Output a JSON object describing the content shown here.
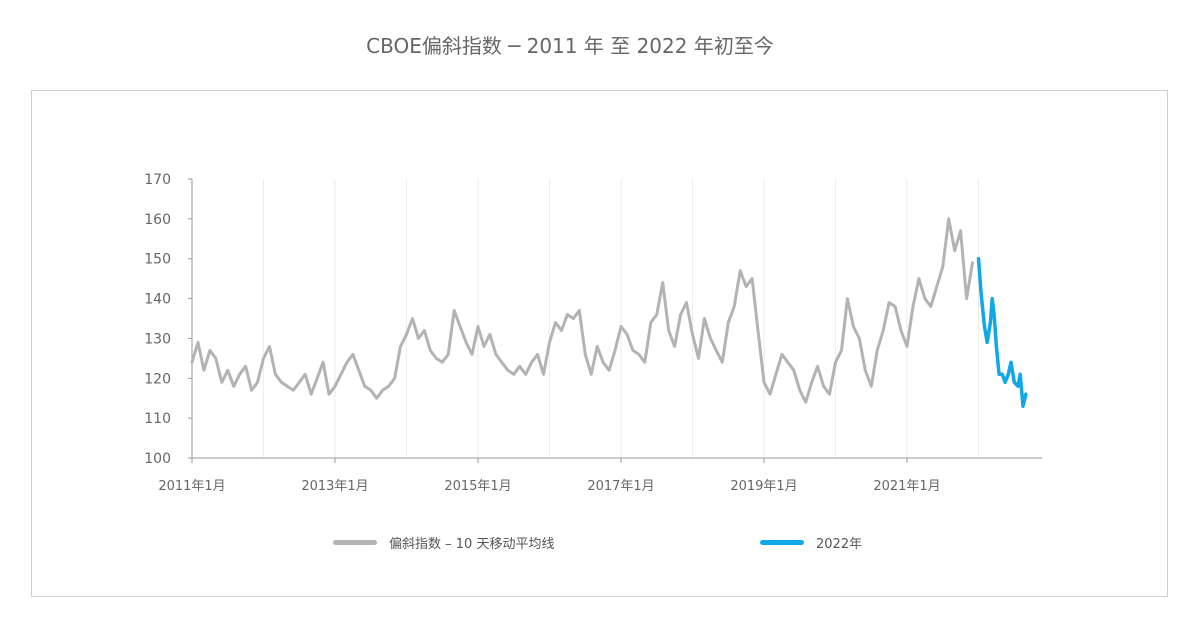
{
  "chart_data": {
    "type": "line",
    "title": "CBOE偏斜指数 ─ 2011 年 至  2022 年初至今",
    "xlabel": "",
    "ylabel": "",
    "ylim": [
      100,
      170
    ],
    "yticks": [
      "100",
      "110",
      "120",
      "130",
      "140",
      "150",
      "160",
      "170"
    ],
    "x_tick_labels": [
      "2011年1月",
      "2013年1月",
      "2015年1月",
      "2017年1月",
      "2019年1月",
      "2021年1月"
    ],
    "x_axis_note": "第五个标签印为“2019年1月”（原图如此），对应 2019 年位置",
    "grid": "vertical",
    "legend_position": "bottom",
    "colors": {
      "history": "#b3b3b3",
      "ytd": "#11a8e8",
      "grid": "#eeeeee",
      "axis": "#9a9a9a",
      "text": "#666666"
    },
    "series": [
      {
        "name": "偏斜指数 – 10 天移动平均线",
        "color": "#b3b3b3",
        "points": [
          [
            "2011-01",
            124
          ],
          [
            "2011-02",
            129
          ],
          [
            "2011-03",
            122
          ],
          [
            "2011-04",
            127
          ],
          [
            "2011-05",
            125
          ],
          [
            "2011-06",
            119
          ],
          [
            "2011-07",
            122
          ],
          [
            "2011-08",
            118
          ],
          [
            "2011-09",
            121
          ],
          [
            "2011-10",
            123
          ],
          [
            "2011-11",
            117
          ],
          [
            "2011-12",
            119
          ],
          [
            "2012-01",
            125
          ],
          [
            "2012-02",
            128
          ],
          [
            "2012-03",
            121
          ],
          [
            "2012-04",
            119
          ],
          [
            "2012-05",
            118
          ],
          [
            "2012-06",
            117
          ],
          [
            "2012-07",
            119
          ],
          [
            "2012-08",
            121
          ],
          [
            "2012-09",
            116
          ],
          [
            "2012-10",
            120
          ],
          [
            "2012-11",
            124
          ],
          [
            "2012-12",
            116
          ],
          [
            "2013-01",
            118
          ],
          [
            "2013-02",
            121
          ],
          [
            "2013-03",
            124
          ],
          [
            "2013-04",
            126
          ],
          [
            "2013-05",
            122
          ],
          [
            "2013-06",
            118
          ],
          [
            "2013-07",
            117
          ],
          [
            "2013-08",
            115
          ],
          [
            "2013-09",
            117
          ],
          [
            "2013-10",
            118
          ],
          [
            "2013-11",
            120
          ],
          [
            "2013-12",
            128
          ],
          [
            "2014-01",
            131
          ],
          [
            "2014-02",
            135
          ],
          [
            "2014-03",
            130
          ],
          [
            "2014-04",
            132
          ],
          [
            "2014-05",
            127
          ],
          [
            "2014-06",
            125
          ],
          [
            "2014-07",
            124
          ],
          [
            "2014-08",
            126
          ],
          [
            "2014-09",
            137
          ],
          [
            "2014-10",
            133
          ],
          [
            "2014-11",
            129
          ],
          [
            "2014-12",
            126
          ],
          [
            "2015-01",
            133
          ],
          [
            "2015-02",
            128
          ],
          [
            "2015-03",
            131
          ],
          [
            "2015-04",
            126
          ],
          [
            "2015-05",
            124
          ],
          [
            "2015-06",
            122
          ],
          [
            "2015-07",
            121
          ],
          [
            "2015-08",
            123
          ],
          [
            "2015-09",
            121
          ],
          [
            "2015-10",
            124
          ],
          [
            "2015-11",
            126
          ],
          [
            "2015-12",
            121
          ],
          [
            "2016-01",
            129
          ],
          [
            "2016-02",
            134
          ],
          [
            "2016-03",
            132
          ],
          [
            "2016-04",
            136
          ],
          [
            "2016-05",
            135
          ],
          [
            "2016-06",
            137
          ],
          [
            "2016-07",
            126
          ],
          [
            "2016-08",
            121
          ],
          [
            "2016-09",
            128
          ],
          [
            "2016-10",
            124
          ],
          [
            "2016-11",
            122
          ],
          [
            "2016-12",
            127
          ],
          [
            "2017-01",
            133
          ],
          [
            "2017-02",
            131
          ],
          [
            "2017-03",
            127
          ],
          [
            "2017-04",
            126
          ],
          [
            "2017-05",
            124
          ],
          [
            "2017-06",
            134
          ],
          [
            "2017-07",
            136
          ],
          [
            "2017-08",
            144
          ],
          [
            "2017-09",
            132
          ],
          [
            "2017-10",
            128
          ],
          [
            "2017-11",
            136
          ],
          [
            "2017-12",
            139
          ],
          [
            "2018-01",
            131
          ],
          [
            "2018-02",
            125
          ],
          [
            "2018-03",
            135
          ],
          [
            "2018-04",
            130
          ],
          [
            "2018-05",
            127
          ],
          [
            "2018-06",
            124
          ],
          [
            "2018-07",
            134
          ],
          [
            "2018-08",
            138
          ],
          [
            "2018-09",
            147
          ],
          [
            "2018-10",
            143
          ],
          [
            "2018-11",
            145
          ],
          [
            "2018-12",
            132
          ],
          [
            "2019-01",
            119
          ],
          [
            "2019-02",
            116
          ],
          [
            "2019-03",
            121
          ],
          [
            "2019-04",
            126
          ],
          [
            "2019-05",
            124
          ],
          [
            "2019-06",
            122
          ],
          [
            "2019-07",
            117
          ],
          [
            "2019-08",
            114
          ],
          [
            "2019-09",
            119
          ],
          [
            "2019-10",
            123
          ],
          [
            "2019-11",
            118
          ],
          [
            "2019-12",
            116
          ],
          [
            "2020-01",
            124
          ],
          [
            "2020-02",
            127
          ],
          [
            "2020-03",
            140
          ],
          [
            "2020-04",
            133
          ],
          [
            "2020-05",
            130
          ],
          [
            "2020-06",
            122
          ],
          [
            "2020-07",
            118
          ],
          [
            "2020-08",
            127
          ],
          [
            "2020-09",
            132
          ],
          [
            "2020-10",
            139
          ],
          [
            "2020-11",
            138
          ],
          [
            "2020-12",
            132
          ],
          [
            "2021-01",
            128
          ],
          [
            "2021-02",
            138
          ],
          [
            "2021-03",
            145
          ],
          [
            "2021-04",
            140
          ],
          [
            "2021-05",
            138
          ],
          [
            "2021-06",
            143
          ],
          [
            "2021-07",
            148
          ],
          [
            "2021-08",
            160
          ],
          [
            "2021-09",
            152
          ],
          [
            "2021-10",
            157
          ],
          [
            "2021-11",
            140
          ],
          [
            "2021-12",
            149
          ]
        ]
      },
      {
        "name": "2022年",
        "color": "#11a8e8",
        "points": [
          [
            "2022-01",
            150
          ],
          [
            "2022-01-15",
            141
          ],
          [
            "2022-02",
            133
          ],
          [
            "2022-02-15",
            129
          ],
          [
            "2022-03",
            134
          ],
          [
            "2022-03-10",
            140
          ],
          [
            "2022-03-20",
            136
          ],
          [
            "2022-04",
            128
          ],
          [
            "2022-04-15",
            121
          ],
          [
            "2022-05",
            121
          ],
          [
            "2022-05-15",
            119
          ],
          [
            "2022-06",
            121
          ],
          [
            "2022-06-15",
            124
          ],
          [
            "2022-07",
            119
          ],
          [
            "2022-07-20",
            118
          ],
          [
            "2022-08",
            121
          ],
          [
            "2022-08-15",
            113
          ],
          [
            "2022-08-30",
            116
          ]
        ]
      }
    ]
  }
}
